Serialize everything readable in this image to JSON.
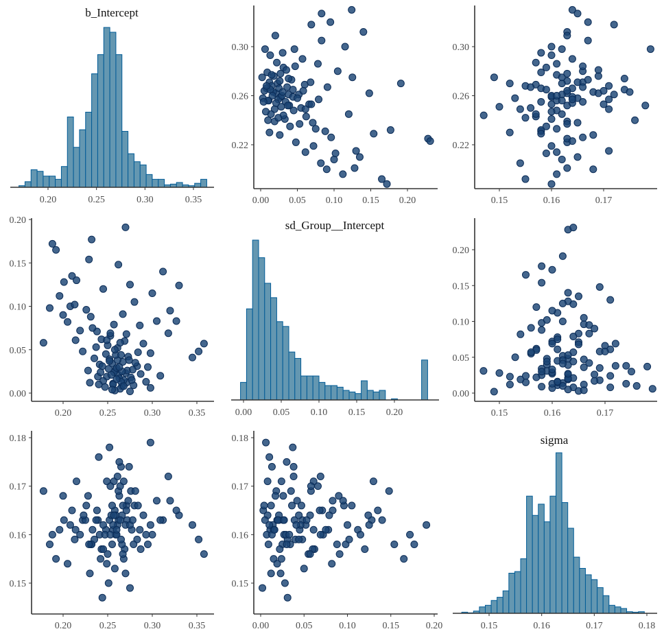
{
  "chart_data": [
    {
      "type": "bar",
      "panel": "b_Intercept histogram",
      "title": "b_Intercept",
      "bin_start": 0.17,
      "bin_width": 0.00625,
      "relative_heights": [
        1,
        3.5,
        11,
        10,
        7,
        7,
        5,
        13,
        44,
        25,
        36,
        47,
        71,
        83,
        100,
        97,
        83,
        35,
        21,
        16,
        14,
        8,
        5,
        5,
        1.5,
        2,
        3,
        1.5,
        1,
        2.5,
        5
      ],
      "xticks": [
        0.2,
        0.25,
        0.3,
        0.35
      ],
      "xlim": [
        0.165,
        0.368
      ]
    },
    {
      "type": "bar",
      "panel": "sd_Group__Intercept histogram",
      "title": "sd_Group__Intercept",
      "bin_start": -0.004,
      "bin_width": 0.008,
      "relative_heights": [
        11,
        57,
        100,
        89,
        73,
        64,
        49,
        46,
        30,
        26,
        15,
        15,
        15,
        11,
        9,
        9,
        8,
        6,
        5,
        4,
        12,
        6,
        5,
        6,
        0,
        0.7,
        0,
        0,
        0,
        0,
        25
      ],
      "xticks": [
        0.0,
        0.05,
        0.1,
        0.15,
        0.2
      ],
      "xlim": [
        -0.016,
        0.259
      ]
    },
    {
      "type": "bar",
      "panel": "sigma histogram",
      "title": "sigma",
      "bin_start": 0.1448,
      "bin_width": 0.00112,
      "relative_heights": [
        0.7,
        0.3,
        1.4,
        4,
        5,
        8,
        10,
        14,
        25,
        26,
        34,
        73,
        61,
        68,
        57,
        73,
        100,
        69,
        53,
        35,
        28,
        24,
        21,
        16,
        11,
        5,
        4,
        3,
        1,
        0.7,
        1
      ],
      "xticks": [
        0.15,
        0.16,
        0.17,
        0.18
      ],
      "xlim": [
        0.1436,
        0.1823
      ]
    },
    {
      "type": "scatter",
      "panels": "pairwise scatter of posterior draws",
      "variables": [
        "b_Intercept",
        "sd_Group__Intercept",
        "sigma"
      ],
      "ticks": {
        "b_Intercept_x": [
          0.2,
          0.25,
          0.3,
          0.35
        ],
        "b_Intercept_y": [
          0.22,
          0.26,
          0.3
        ],
        "sd_Group__Intercept_x_row1": [
          0.0,
          0.05,
          0.1,
          0.15,
          0.2
        ],
        "sd_Group__Intercept_x_row3": [
          0.0,
          0.05,
          0.1,
          0.15,
          0.2
        ],
        "sd_Group__Intercept_y": [
          0.0,
          0.05,
          0.1,
          0.15,
          0.2
        ],
        "sigma_x": [
          0.15,
          0.16,
          0.17
        ],
        "sigma_y": [
          0.15,
          0.16,
          0.17,
          0.18
        ]
      },
      "draws_b_sd_sigma": [
        [
          0.262,
          0.021,
          0.163
        ],
        [
          0.255,
          0.034,
          0.158
        ],
        [
          0.271,
          0.012,
          0.166
        ],
        [
          0.248,
          0.045,
          0.161
        ],
        [
          0.266,
          0.008,
          0.164
        ],
        [
          0.259,
          0.027,
          0.16
        ],
        [
          0.243,
          0.062,
          0.157
        ],
        [
          0.276,
          0.018,
          0.169
        ],
        [
          0.252,
          0.039,
          0.163
        ],
        [
          0.268,
          0.015,
          0.155
        ],
        [
          0.261,
          0.052,
          0.162
        ],
        [
          0.238,
          0.071,
          0.165
        ],
        [
          0.257,
          0.024,
          0.171
        ],
        [
          0.283,
          0.031,
          0.159
        ],
        [
          0.264,
          0.005,
          0.163
        ],
        [
          0.249,
          0.019,
          0.154
        ],
        [
          0.273,
          0.042,
          0.167
        ],
        [
          0.256,
          0.011,
          0.161
        ],
        [
          0.231,
          0.088,
          0.158
        ],
        [
          0.29,
          0.057,
          0.164
        ],
        [
          0.26,
          0.029,
          0.16
        ],
        [
          0.267,
          0.036,
          0.166
        ],
        [
          0.245,
          0.014,
          0.162
        ],
        [
          0.279,
          0.009,
          0.158
        ],
        [
          0.253,
          0.066,
          0.17
        ],
        [
          0.222,
          0.048,
          0.163
        ],
        [
          0.27,
          0.023,
          0.152
        ],
        [
          0.258,
          0.003,
          0.165
        ],
        [
          0.241,
          0.033,
          0.16
        ],
        [
          0.286,
          0.078,
          0.161
        ],
        [
          0.263,
          0.017,
          0.168
        ],
        [
          0.25,
          0.055,
          0.156
        ],
        [
          0.272,
          0.026,
          0.163
        ],
        [
          0.235,
          0.04,
          0.159
        ],
        [
          0.265,
          0.013,
          0.174
        ],
        [
          0.298,
          0.046,
          0.162
        ],
        [
          0.254,
          0.021,
          0.164
        ],
        [
          0.226,
          0.096,
          0.166
        ],
        [
          0.269,
          0.06,
          0.157
        ],
        [
          0.247,
          0.007,
          0.16
        ],
        [
          0.261,
          0.038,
          0.172
        ],
        [
          0.277,
          0.015,
          0.161
        ],
        [
          0.251,
          0.028,
          0.15
        ],
        [
          0.219,
          0.072,
          0.16
        ],
        [
          0.305,
          0.083,
          0.167
        ],
        [
          0.259,
          0.044,
          0.164
        ],
        [
          0.266,
          0.025,
          0.158
        ],
        [
          0.239,
          0.019,
          0.163
        ],
        [
          0.281,
          0.035,
          0.169
        ],
        [
          0.256,
          0.01,
          0.162
        ],
        [
          0.192,
          0.165,
          0.155
        ],
        [
          0.188,
          0.172,
          0.16
        ],
        [
          0.201,
          0.128,
          0.163
        ],
        [
          0.185,
          0.098,
          0.158
        ],
        [
          0.178,
          0.058,
          0.169
        ],
        [
          0.21,
          0.135,
          0.165
        ],
        [
          0.196,
          0.112,
          0.161
        ],
        [
          0.33,
          0.124,
          0.164
        ],
        [
          0.352,
          0.048,
          0.159
        ],
        [
          0.358,
          0.057,
          0.156
        ],
        [
          0.345,
          0.041,
          0.162
        ],
        [
          0.32,
          0.095,
          0.167
        ],
        [
          0.312,
          0.14,
          0.163
        ],
        [
          0.27,
          0.191,
          0.162
        ],
        [
          0.225,
          0.228,
          0.163
        ],
        [
          0.223,
          0.231,
          0.164
        ],
        [
          0.232,
          0.177,
          0.158
        ],
        [
          0.229,
          0.154,
          0.158
        ],
        [
          0.215,
          0.13,
          0.171
        ],
        [
          0.3,
          0.115,
          0.16
        ],
        [
          0.262,
          0.148,
          0.169
        ],
        [
          0.245,
          0.12,
          0.157
        ],
        [
          0.28,
          0.105,
          0.166
        ],
        [
          0.205,
          0.082,
          0.154
        ],
        [
          0.318,
          0.069,
          0.172
        ],
        [
          0.24,
          0.01,
          0.176
        ],
        [
          0.275,
          0.002,
          0.149
        ],
        [
          0.258,
          0.05,
          0.153
        ],
        [
          0.263,
          0.03,
          0.175
        ],
        [
          0.249,
          0.061,
          0.171
        ],
        [
          0.309,
          0.02,
          0.163
        ],
        [
          0.228,
          0.026,
          0.168
        ],
        [
          0.293,
          0.013,
          0.16
        ],
        [
          0.233,
          0.075,
          0.161
        ],
        [
          0.267,
          0.091,
          0.156
        ],
        [
          0.255,
          0.004,
          0.166
        ],
        [
          0.271,
          0.068,
          0.165
        ],
        [
          0.244,
          0.031,
          0.147
        ],
        [
          0.287,
          0.022,
          0.157
        ],
        [
          0.26,
          0.016,
          0.161
        ],
        [
          0.298,
          0.006,
          0.179
        ],
        [
          0.252,
          0.037,
          0.178
        ],
        [
          0.327,
          0.083,
          0.165
        ],
        [
          0.208,
          0.1,
          0.162
        ],
        [
          0.265,
          0.044,
          0.159
        ],
        [
          0.237,
          0.053,
          0.163
        ],
        [
          0.274,
          0.038,
          0.174
        ],
        [
          0.214,
          0.061,
          0.161
        ],
        [
          0.295,
          0.03,
          0.158
        ],
        [
          0.257,
          0.079,
          0.164
        ],
        [
          0.2,
          0.09,
          0.168
        ],
        [
          0.275,
          0.125,
          0.162
        ],
        [
          0.213,
          0.102,
          0.159
        ],
        [
          0.264,
          0.058,
          0.17
        ],
        [
          0.23,
          0.012,
          0.152
        ],
        [
          0.284,
          0.047,
          0.166
        ],
        [
          0.242,
          0.024,
          0.155
        ],
        [
          0.268,
          0.008,
          0.171
        ],
        [
          0.253,
          0.069,
          0.16
        ],
        [
          0.278,
          0.027,
          0.163
        ]
      ]
    }
  ],
  "colors": {
    "histogram_fill": "#6497b1",
    "histogram_outline": "#005b96",
    "point_fill": "#1b4474",
    "point_outline": "#0b2c57",
    "axis": "#333333"
  }
}
